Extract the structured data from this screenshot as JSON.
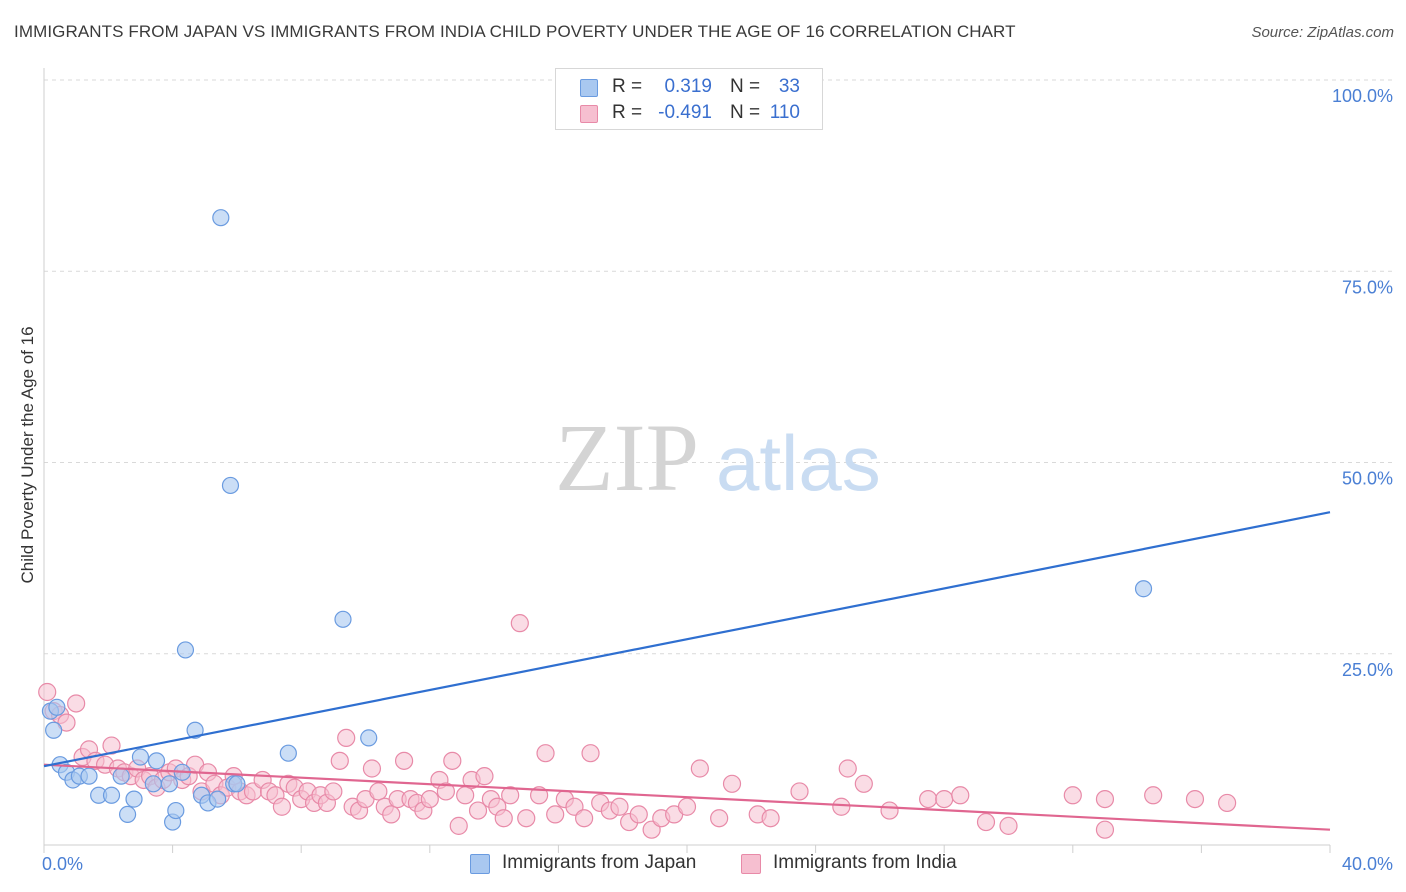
{
  "title": "IMMIGRANTS FROM JAPAN VS IMMIGRANTS FROM INDIA CHILD POVERTY UNDER THE AGE OF 16 CORRELATION CHART",
  "source": "Source: ZipAtlas.com",
  "watermark": {
    "zip": "ZIP",
    "atlas": "atlas"
  },
  "legend": {
    "japan": {
      "r_label": "R =",
      "r_value": "0.319",
      "n_label": "N =",
      "n_value": "33"
    },
    "india": {
      "r_label": "R =",
      "r_value": "-0.491",
      "n_label": "N =",
      "n_value": "110"
    }
  },
  "bottom_legend": {
    "japan": "Immigrants from Japan",
    "india": "Immigrants from India"
  },
  "colors": {
    "japan_fill": "#a9c8f0",
    "japan_stroke": "#6a9be0",
    "japan_line": "#2f6fd0",
    "india_fill": "#f6bfd0",
    "india_stroke": "#e88aa8",
    "india_line": "#e06690",
    "tick_color": "#4a7fd4",
    "grid": "#d9d9d9"
  },
  "chart_data": {
    "type": "scatter",
    "title": "IMMIGRANTS FROM JAPAN VS IMMIGRANTS FROM INDIA CHILD POVERTY UNDER THE AGE OF 16 CORRELATION CHART",
    "xlabel": "",
    "ylabel": "Child Poverty Under the Age of 16",
    "xlim": [
      0,
      40
    ],
    "ylim": [
      0,
      100
    ],
    "x_tick_labels": [
      "0.0%",
      "40.0%"
    ],
    "y_tick_labels": [
      "100.0%",
      "75.0%",
      "50.0%",
      "25.0%"
    ],
    "y_tick_values": [
      100,
      75,
      50,
      25
    ],
    "grid": true,
    "legend_position": "top-center",
    "series": [
      {
        "name": "Immigrants from Japan",
        "points": [
          [
            0.2,
            17.5
          ],
          [
            0.3,
            15.0
          ],
          [
            0.5,
            10.5
          ],
          [
            0.7,
            9.5
          ],
          [
            0.9,
            8.5
          ],
          [
            1.1,
            9.0
          ],
          [
            1.4,
            9.0
          ],
          [
            1.7,
            6.5
          ],
          [
            2.1,
            6.5
          ],
          [
            2.4,
            9.0
          ],
          [
            2.6,
            4.0
          ],
          [
            2.8,
            6.0
          ],
          [
            3.0,
            11.5
          ],
          [
            3.4,
            8.0
          ],
          [
            3.5,
            11.0
          ],
          [
            3.9,
            8.0
          ],
          [
            4.0,
            3.0
          ],
          [
            4.1,
            4.5
          ],
          [
            4.3,
            9.5
          ],
          [
            4.4,
            25.5
          ],
          [
            4.7,
            15.0
          ],
          [
            4.9,
            6.5
          ],
          [
            5.1,
            5.5
          ],
          [
            5.4,
            6.0
          ],
          [
            5.5,
            82.0
          ],
          [
            5.8,
            47.0
          ],
          [
            5.9,
            8.0
          ],
          [
            6.0,
            8.0
          ],
          [
            7.6,
            12.0
          ],
          [
            9.3,
            29.5
          ],
          [
            10.1,
            14.0
          ],
          [
            34.2,
            33.5
          ],
          [
            0.4,
            18.0
          ]
        ],
        "trend": [
          [
            0,
            10.3
          ],
          [
            40,
            43.5
          ]
        ]
      },
      {
        "name": "Immigrants from India",
        "points": [
          [
            0.1,
            20.0
          ],
          [
            0.3,
            17.5
          ],
          [
            0.5,
            17.0
          ],
          [
            0.7,
            16.0
          ],
          [
            1.0,
            18.5
          ],
          [
            1.2,
            11.5
          ],
          [
            1.4,
            12.5
          ],
          [
            1.6,
            11.0
          ],
          [
            1.9,
            10.5
          ],
          [
            2.1,
            13.0
          ],
          [
            2.3,
            10.0
          ],
          [
            2.5,
            9.5
          ],
          [
            2.7,
            9.0
          ],
          [
            2.9,
            10.0
          ],
          [
            3.1,
            8.5
          ],
          [
            3.3,
            9.0
          ],
          [
            3.5,
            7.5
          ],
          [
            3.7,
            8.5
          ],
          [
            3.9,
            9.5
          ],
          [
            4.1,
            10.0
          ],
          [
            4.3,
            8.5
          ],
          [
            4.5,
            9.0
          ],
          [
            4.7,
            10.5
          ],
          [
            4.9,
            7.0
          ],
          [
            5.1,
            9.5
          ],
          [
            5.3,
            8.0
          ],
          [
            5.5,
            6.5
          ],
          [
            5.7,
            7.5
          ],
          [
            5.9,
            9.0
          ],
          [
            6.1,
            7.0
          ],
          [
            6.3,
            6.5
          ],
          [
            6.5,
            7.0
          ],
          [
            6.8,
            8.5
          ],
          [
            7.0,
            7.0
          ],
          [
            7.2,
            6.5
          ],
          [
            7.4,
            5.0
          ],
          [
            7.6,
            8.0
          ],
          [
            7.8,
            7.5
          ],
          [
            8.0,
            6.0
          ],
          [
            8.2,
            7.0
          ],
          [
            8.4,
            5.5
          ],
          [
            8.6,
            6.5
          ],
          [
            8.8,
            5.5
          ],
          [
            9.0,
            7.0
          ],
          [
            9.2,
            11.0
          ],
          [
            9.4,
            14.0
          ],
          [
            9.6,
            5.0
          ],
          [
            9.8,
            4.5
          ],
          [
            10.0,
            6.0
          ],
          [
            10.2,
            10.0
          ],
          [
            10.4,
            7.0
          ],
          [
            10.6,
            5.0
          ],
          [
            10.8,
            4.0
          ],
          [
            11.0,
            6.0
          ],
          [
            11.2,
            11.0
          ],
          [
            11.4,
            6.0
          ],
          [
            11.6,
            5.5
          ],
          [
            11.8,
            4.5
          ],
          [
            12.0,
            6.0
          ],
          [
            12.3,
            8.5
          ],
          [
            12.5,
            7.0
          ],
          [
            12.7,
            11.0
          ],
          [
            12.9,
            2.5
          ],
          [
            13.1,
            6.5
          ],
          [
            13.3,
            8.5
          ],
          [
            13.5,
            4.5
          ],
          [
            13.7,
            9.0
          ],
          [
            13.9,
            6.0
          ],
          [
            14.1,
            5.0
          ],
          [
            14.3,
            3.5
          ],
          [
            14.5,
            6.5
          ],
          [
            14.8,
            29.0
          ],
          [
            15.0,
            3.5
          ],
          [
            15.4,
            6.5
          ],
          [
            15.6,
            12.0
          ],
          [
            15.9,
            4.0
          ],
          [
            16.2,
            6.0
          ],
          [
            16.5,
            5.0
          ],
          [
            16.8,
            3.5
          ],
          [
            17.0,
            12.0
          ],
          [
            17.3,
            5.5
          ],
          [
            17.6,
            4.5
          ],
          [
            17.9,
            5.0
          ],
          [
            18.2,
            3.0
          ],
          [
            18.5,
            4.0
          ],
          [
            18.9,
            2.0
          ],
          [
            19.2,
            3.5
          ],
          [
            19.6,
            4.0
          ],
          [
            20.0,
            5.0
          ],
          [
            20.4,
            10.0
          ],
          [
            21.0,
            3.5
          ],
          [
            21.4,
            8.0
          ],
          [
            22.2,
            4.0
          ],
          [
            22.6,
            3.5
          ],
          [
            23.5,
            7.0
          ],
          [
            24.8,
            5.0
          ],
          [
            25.5,
            8.0
          ],
          [
            26.3,
            4.5
          ],
          [
            27.5,
            6.0
          ],
          [
            28.0,
            6.0
          ],
          [
            29.3,
            3.0
          ],
          [
            30.0,
            2.5
          ],
          [
            32.0,
            6.5
          ],
          [
            33.0,
            2.0
          ],
          [
            34.5,
            6.5
          ],
          [
            35.8,
            6.0
          ],
          [
            36.8,
            5.5
          ],
          [
            33.0,
            6.0
          ],
          [
            28.5,
            6.5
          ],
          [
            25.0,
            10.0
          ]
        ],
        "trend": [
          [
            0,
            10.5
          ],
          [
            40,
            2.0
          ]
        ]
      }
    ]
  }
}
